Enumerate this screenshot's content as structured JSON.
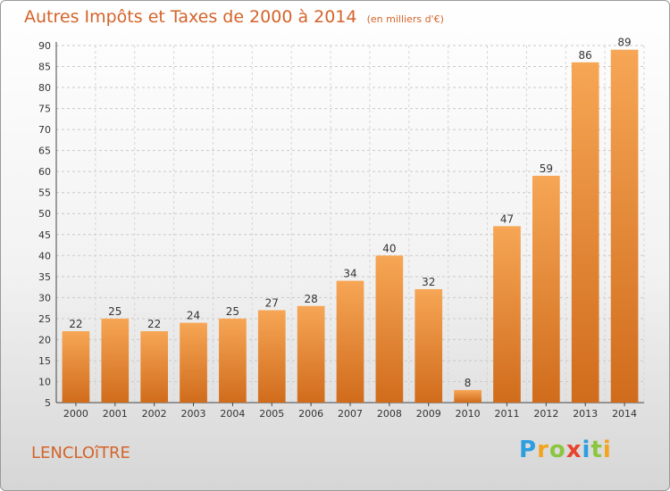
{
  "title": "Autres Impôts et Taxes de 2000 à 2014",
  "unit": "(en milliers d'€)",
  "location": "LENCLOîTRE",
  "brand": {
    "letters": [
      "P",
      "r",
      "o",
      "x",
      "i",
      "t",
      "i"
    ],
    "colors": [
      "#2d9ee0",
      "#f3a41e",
      "#8cc63f",
      "#e8442e",
      "#2d9ee0",
      "#8cc63f",
      "#f3a41e"
    ]
  },
  "colors": {
    "bar": "#f0963c",
    "bar_dark": "#d8701c",
    "text": "#d4632a",
    "grid": "#c8c8c8"
  },
  "chart_data": {
    "type": "bar",
    "categories": [
      "2000",
      "2001",
      "2002",
      "2003",
      "2004",
      "2005",
      "2006",
      "2007",
      "2008",
      "2009",
      "2010",
      "2011",
      "2012",
      "2013",
      "2014"
    ],
    "values": [
      22,
      25,
      22,
      24,
      25,
      27,
      28,
      34,
      40,
      32,
      8,
      47,
      59,
      86,
      89
    ],
    "ylim": [
      5,
      90
    ],
    "yticks": [
      5,
      10,
      15,
      20,
      25,
      30,
      35,
      40,
      45,
      50,
      55,
      60,
      65,
      70,
      75,
      80,
      85,
      90
    ],
    "grid": true,
    "data_labels": true
  }
}
